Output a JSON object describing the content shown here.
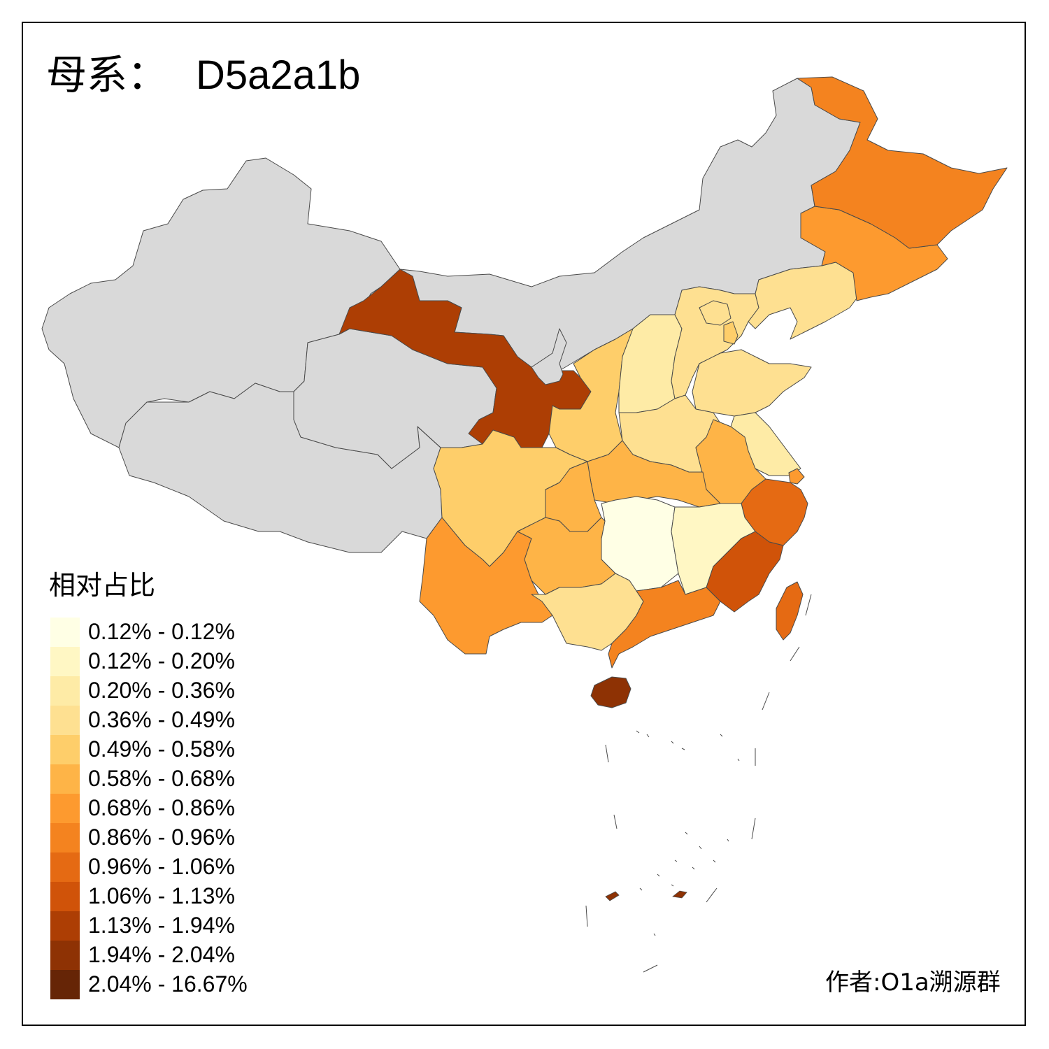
{
  "map": {
    "title": "母系：",
    "haplogroup": "D5a2a1b",
    "legend_title": "相对占比",
    "credit": "作者:O1a溯源群",
    "no_data_color": "#d9d9d9",
    "legend": [
      {
        "label": "0.12% - 0.12%",
        "color": "#ffffe5"
      },
      {
        "label": "0.12% - 0.20%",
        "color": "#fff7c4"
      },
      {
        "label": "0.20% - 0.36%",
        "color": "#feeba6"
      },
      {
        "label": "0.36% - 0.49%",
        "color": "#fee091"
      },
      {
        "label": "0.49% - 0.58%",
        "color": "#fece6a"
      },
      {
        "label": "0.58% - 0.68%",
        "color": "#feb447"
      },
      {
        "label": "0.68% - 0.86%",
        "color": "#fd9a2f"
      },
      {
        "label": "0.86% - 0.96%",
        "color": "#f4831f"
      },
      {
        "label": "0.96% - 1.06%",
        "color": "#e56a13"
      },
      {
        "label": "1.06% - 1.13%",
        "color": "#d05309"
      },
      {
        "label": "1.13% - 1.94%",
        "color": "#ad3e04"
      },
      {
        "label": "1.94% - 2.04%",
        "color": "#8e3204"
      },
      {
        "label": "2.04% - 16.67%",
        "color": "#662506"
      }
    ],
    "regions": [
      {
        "id": "xinjiang",
        "color": "#d9d9d9"
      },
      {
        "id": "tibet",
        "color": "#d9d9d9"
      },
      {
        "id": "inner-mongolia",
        "color": "#d9d9d9"
      },
      {
        "id": "ningxia",
        "color": "#d9d9d9"
      },
      {
        "id": "qinghai",
        "color": "#d9d9d9"
      },
      {
        "id": "gansu",
        "color": "#ad3e04"
      },
      {
        "id": "shaanxi",
        "color": "#fece6a"
      },
      {
        "id": "shanxi",
        "color": "#feeba6"
      },
      {
        "id": "hebei",
        "color": "#fee091"
      },
      {
        "id": "beijing",
        "color": "#fee091"
      },
      {
        "id": "tianjin",
        "color": "#fece6a"
      },
      {
        "id": "liaoning",
        "color": "#fee091"
      },
      {
        "id": "jilin",
        "color": "#fd9a2f"
      },
      {
        "id": "heilongjiang",
        "color": "#f4831f"
      },
      {
        "id": "shandong",
        "color": "#fee091"
      },
      {
        "id": "henan",
        "color": "#fee091"
      },
      {
        "id": "jiangsu",
        "color": "#feeba6"
      },
      {
        "id": "anhui",
        "color": "#feb447"
      },
      {
        "id": "shanghai",
        "color": "#fd9a2f"
      },
      {
        "id": "zhejiang",
        "color": "#e56a13"
      },
      {
        "id": "hubei",
        "color": "#feb447"
      },
      {
        "id": "chongqing",
        "color": "#feb447"
      },
      {
        "id": "sichuan",
        "color": "#fece6a"
      },
      {
        "id": "hunan",
        "color": "#ffffe5"
      },
      {
        "id": "jiangxi",
        "color": "#fff7c4"
      },
      {
        "id": "fujian",
        "color": "#d05309"
      },
      {
        "id": "yunnan",
        "color": "#fd9a2f"
      },
      {
        "id": "guizhou",
        "color": "#feb447"
      },
      {
        "id": "guangxi",
        "color": "#fee091"
      },
      {
        "id": "guangdong",
        "color": "#f4831f"
      },
      {
        "id": "hainan",
        "color": "#8e3204"
      },
      {
        "id": "taiwan",
        "color": "#e56a13"
      }
    ]
  }
}
